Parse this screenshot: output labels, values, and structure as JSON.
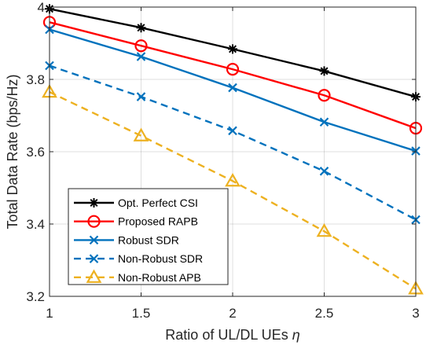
{
  "chart_data": {
    "type": "line",
    "title": "",
    "xlabel": "Ratio of UL/DL UEs",
    "xlabel_symbol": "η",
    "ylabel": "Total Data Rate (bps/Hz)",
    "xlim": [
      1,
      3
    ],
    "ylim": [
      3.2,
      4
    ],
    "xticks": [
      "1",
      "1.5",
      "2",
      "2.5",
      "3"
    ],
    "yticks": [
      "3.2",
      "3.4",
      "3.6",
      "3.8",
      "4"
    ],
    "grid": true,
    "legend_position": "bottom-left",
    "x": [
      1,
      1.5,
      2,
      2.5,
      3
    ],
    "series": [
      {
        "name": "Opt. Perfect CSI",
        "values": [
          3.995,
          3.943,
          3.884,
          3.823,
          3.752
        ],
        "color": "#000000",
        "marker": "asterisk",
        "dash": "solid"
      },
      {
        "name": "Proposed RAPB",
        "values": [
          3.958,
          3.893,
          3.828,
          3.756,
          3.665
        ],
        "color": "#ff0000",
        "marker": "circle",
        "dash": "solid"
      },
      {
        "name": "Robust SDR",
        "values": [
          3.938,
          3.863,
          3.777,
          3.682,
          3.602
        ],
        "color": "#0072bd",
        "marker": "x",
        "dash": "solid"
      },
      {
        "name": "Non-Robust SDR",
        "values": [
          3.838,
          3.752,
          3.658,
          3.546,
          3.412
        ],
        "color": "#0072bd",
        "marker": "x",
        "dash": "dashed"
      },
      {
        "name": "Non-Robust APB",
        "values": [
          3.765,
          3.644,
          3.519,
          3.38,
          3.221
        ],
        "color": "#edb120",
        "marker": "triangle",
        "dash": "dashed"
      }
    ]
  }
}
